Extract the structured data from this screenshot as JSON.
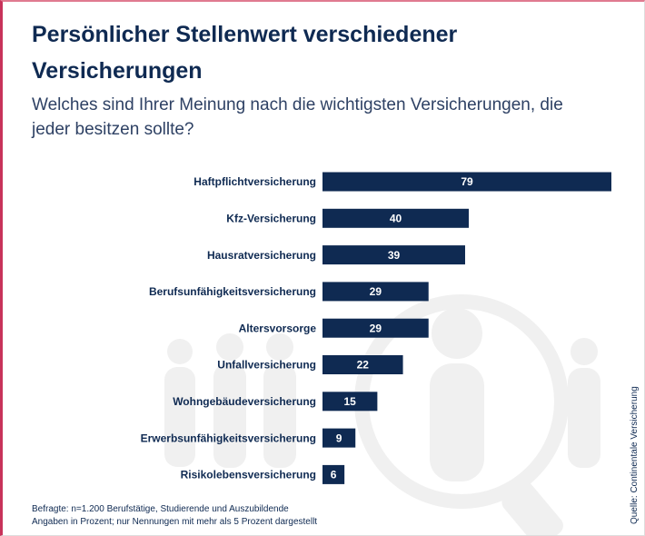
{
  "chart_data": {
    "type": "bar",
    "orientation": "horizontal",
    "title": "Persönlicher Stellenwert verschiedener Versicherungen",
    "subtitle": "Welches sind Ihrer Meinung nach die wichtigsten Versicherungen, die jeder besitzen sollte?",
    "categories": [
      "Haftpflichtversicherung",
      "Kfz-Versicherung",
      "Hausratversicherung",
      "Berufsunfähigkeitsversicherung",
      "Altersvorsorge",
      "Unfallversicherung",
      "Wohngebäudeversicherung",
      "Erwerbsunfähigkeitsversicherung",
      "Risikolebensversicherung"
    ],
    "values": [
      79,
      40,
      39,
      29,
      29,
      22,
      15,
      9,
      6
    ],
    "color": "#0f2a52",
    "footnote": [
      "Befragte: n=1.200 Berufstätige, Studierende und Auszubildende",
      "Angaben in Prozent; nur Nennungen mit mehr als 5 Prozent dargestellt"
    ],
    "source": "Quelle: Continentale Versicherung"
  }
}
